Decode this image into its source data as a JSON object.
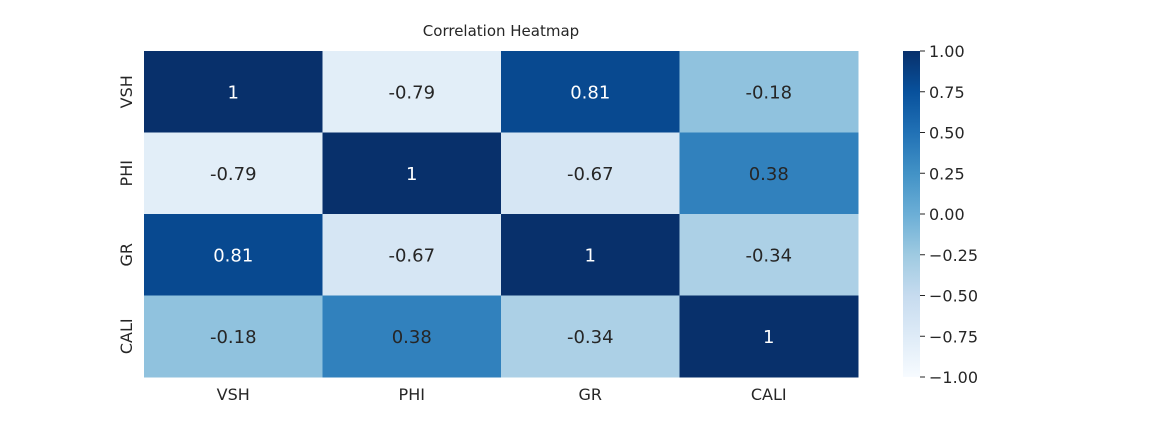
{
  "chart_data": {
    "type": "heatmap",
    "title": "Correlation Heatmap",
    "variables": [
      "VSH",
      "PHI",
      "GR",
      "CALI"
    ],
    "x_tick_labels": [
      "VSH",
      "PHI",
      "GR",
      "CALI"
    ],
    "y_tick_labels": [
      "VSH",
      "PHI",
      "GR",
      "CALI"
    ],
    "matrix": [
      [
        1,
        -0.79,
        0.81,
        -0.18
      ],
      [
        -0.79,
        1,
        -0.67,
        0.38
      ],
      [
        0.81,
        -0.67,
        1,
        -0.34
      ],
      [
        -0.18,
        0.38,
        -0.34,
        1
      ]
    ],
    "annotations": [
      [
        "1",
        "-0.79",
        "0.81",
        "-0.18"
      ],
      [
        "-0.79",
        "1",
        "-0.67",
        "0.38"
      ],
      [
        "0.81",
        "-0.67",
        "1",
        "-0.34"
      ],
      [
        "-0.18",
        "0.38",
        "-0.34",
        "1"
      ]
    ],
    "colormap": "Blues",
    "vmin": -1.0,
    "vmax": 1.0,
    "colorbar": {
      "ticks": [
        1.0,
        0.75,
        0.5,
        0.25,
        0.0,
        -0.25,
        -0.5,
        -0.75,
        -1.0
      ],
      "tick_labels": [
        "1.00",
        "0.75",
        "0.50",
        "0.25",
        "0.00",
        "−0.25",
        "−0.50",
        "−0.75",
        "−1.00"
      ]
    },
    "grid": false,
    "legend": "colorbar-right"
  },
  "colors": {
    "text_dark": "#262626",
    "text_light": "#ffffff",
    "tick_color": "#262626"
  }
}
